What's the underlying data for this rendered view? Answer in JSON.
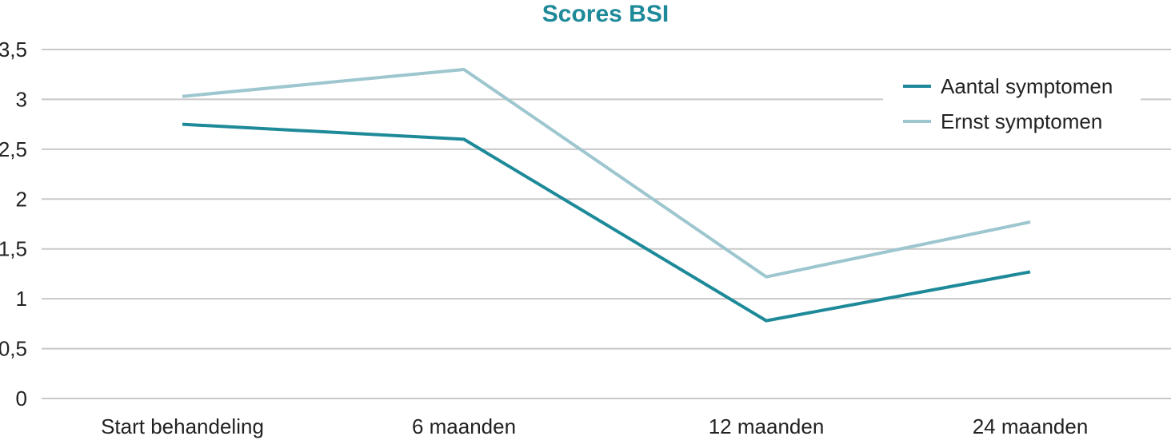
{
  "chart_data": {
    "type": "line",
    "title": "Scores BSI",
    "xlabel": "",
    "ylabel": "",
    "categories": [
      "Start behandeling",
      "6 maanden",
      "12 maanden",
      "24 maanden"
    ],
    "ylim": [
      0,
      3.5
    ],
    "yticks": [
      "0",
      "0,5",
      "1",
      "1,5",
      "2",
      "2,5",
      "3",
      "3,5"
    ],
    "grid": true,
    "legend_position": "top-right",
    "series": [
      {
        "name": "Aantal symptomen",
        "values": [
          2.75,
          2.6,
          0.78,
          1.27
        ],
        "color": "#1e8a99"
      },
      {
        "name": "Ernst symptomen",
        "values": [
          3.03,
          3.3,
          1.22,
          1.77
        ],
        "color": "#9dc6cf"
      }
    ],
    "title_color": "#1e8a99"
  }
}
